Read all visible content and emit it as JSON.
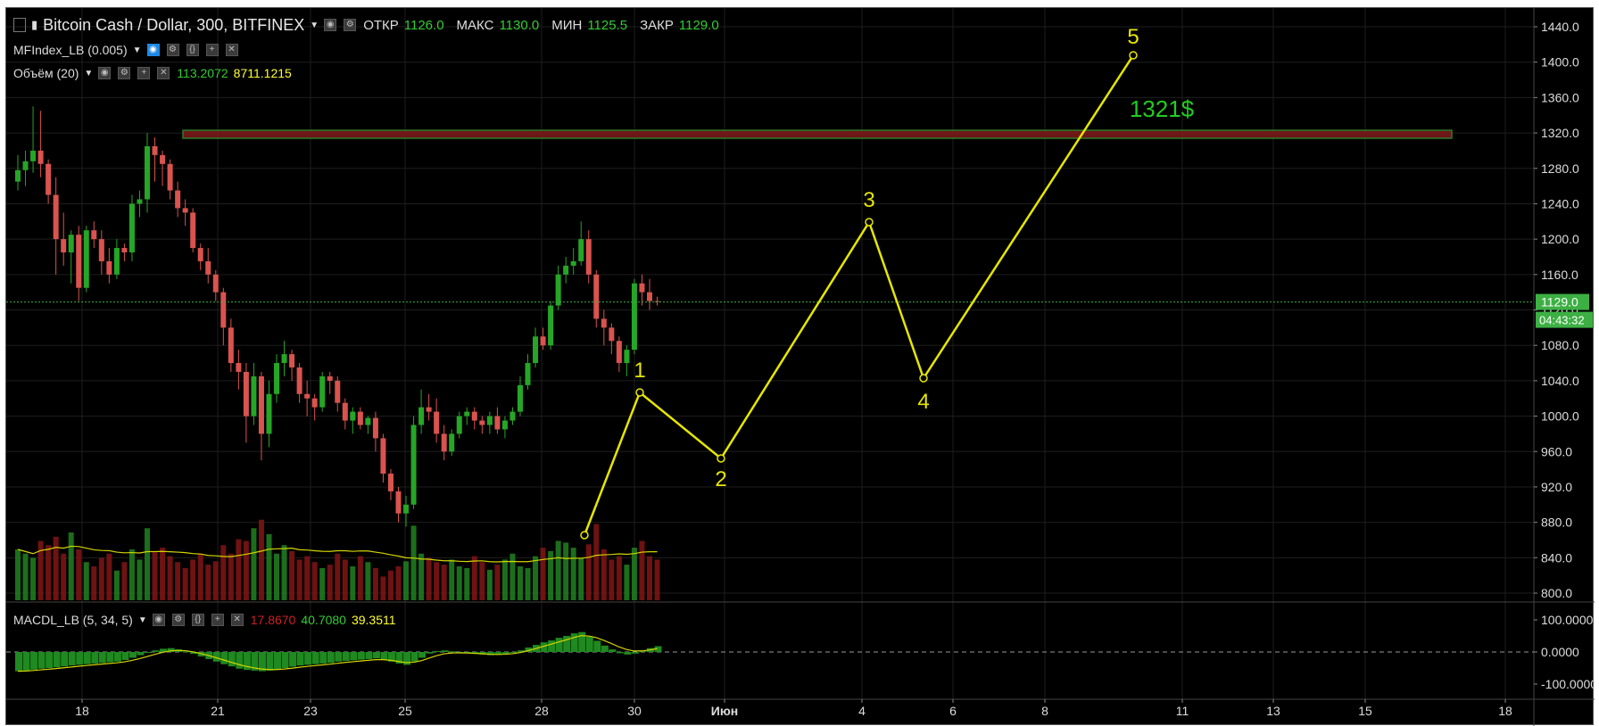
{
  "header": {
    "symbol_title": "Bitcoin Cash / Dollar, 300, BITFINEX",
    "ohlc": [
      {
        "key": "ОТКР",
        "value": "1126.0"
      },
      {
        "key": "МАКС",
        "value": "1130.0"
      },
      {
        "key": "МИН",
        "value": "1125.5"
      },
      {
        "key": "ЗАКР",
        "value": "1129.0"
      }
    ]
  },
  "indicators": {
    "mfi_label": "MFIndex_LB (0.005)",
    "volume_label": "Объём (20)",
    "volume_values": [
      "113.2072",
      "8711.1215"
    ],
    "macd_label": "MACDL_LB (5, 34, 5)",
    "macd_values": [
      "17.8670",
      "40.7080",
      "39.3511"
    ]
  },
  "price_axis": {
    "ticks": [
      "1440.0",
      "1400.0",
      "1360.0",
      "1320.0",
      "1280.0",
      "1240.0",
      "1200.0",
      "1160.0",
      "1120.0",
      "1080.0",
      "1040.0",
      "1000.0",
      "960.0",
      "920.0",
      "880.0",
      "840.0",
      "800.0"
    ],
    "last_price": "1129.0",
    "countdown": "04:43:32"
  },
  "macd_axis": {
    "ticks": [
      "100.0000",
      "0.0000",
      "-100.0000"
    ]
  },
  "time_axis": {
    "ticks": [
      "18",
      "21",
      "23",
      "25",
      "28",
      "30",
      "Июн",
      "4",
      "6",
      "8",
      "11",
      "13",
      "15",
      "18"
    ]
  },
  "annotations": {
    "target_label": "1321$",
    "wave_labels": [
      "1",
      "2",
      "3",
      "4",
      "5"
    ]
  },
  "colors": {
    "background": "#000000",
    "up": "#26a626",
    "down": "#d9534f",
    "wave": "#e6e600",
    "target_text": "#22cc22",
    "zone_fill": "#7a1a1a",
    "zone_border": "#2e8b2e",
    "last_price_tag": "#3cb043"
  },
  "chart_data": {
    "type": "candlestick",
    "title": "Bitcoin Cash / Dollar, 300, BITFINEX",
    "y_range": [
      790,
      1450
    ],
    "candles": [
      [
        1265,
        1295,
        1255,
        1278
      ],
      [
        1278,
        1300,
        1260,
        1288
      ],
      [
        1288,
        1350,
        1275,
        1300
      ],
      [
        1300,
        1345,
        1270,
        1285
      ],
      [
        1285,
        1290,
        1240,
        1250
      ],
      [
        1250,
        1270,
        1160,
        1200
      ],
      [
        1200,
        1230,
        1170,
        1185
      ],
      [
        1185,
        1210,
        1150,
        1205
      ],
      [
        1205,
        1215,
        1130,
        1145
      ],
      [
        1145,
        1215,
        1140,
        1210
      ],
      [
        1210,
        1220,
        1190,
        1200
      ],
      [
        1200,
        1210,
        1160,
        1175
      ],
      [
        1175,
        1190,
        1150,
        1160
      ],
      [
        1160,
        1200,
        1155,
        1190
      ],
      [
        1190,
        1195,
        1175,
        1185
      ],
      [
        1185,
        1250,
        1175,
        1240
      ],
      [
        1240,
        1255,
        1225,
        1245
      ],
      [
        1245,
        1320,
        1230,
        1305
      ],
      [
        1305,
        1315,
        1265,
        1295
      ],
      [
        1295,
        1300,
        1260,
        1285
      ],
      [
        1285,
        1290,
        1245,
        1255
      ],
      [
        1255,
        1265,
        1225,
        1235
      ],
      [
        1235,
        1245,
        1215,
        1230
      ],
      [
        1230,
        1235,
        1185,
        1190
      ],
      [
        1190,
        1195,
        1165,
        1175
      ],
      [
        1175,
        1190,
        1150,
        1160
      ],
      [
        1160,
        1165,
        1130,
        1140
      ],
      [
        1140,
        1145,
        1080,
        1100
      ],
      [
        1100,
        1110,
        1050,
        1060
      ],
      [
        1060,
        1075,
        1030,
        1050
      ],
      [
        1050,
        1060,
        970,
        1000
      ],
      [
        1000,
        1060,
        990,
        1045
      ],
      [
        1045,
        1050,
        950,
        980
      ],
      [
        980,
        1040,
        965,
        1025
      ],
      [
        1025,
        1070,
        1015,
        1060
      ],
      [
        1060,
        1085,
        1045,
        1070
      ],
      [
        1070,
        1075,
        1040,
        1055
      ],
      [
        1055,
        1060,
        1015,
        1025
      ],
      [
        1025,
        1040,
        1000,
        1020
      ],
      [
        1020,
        1025,
        995,
        1010
      ],
      [
        1010,
        1050,
        1005,
        1045
      ],
      [
        1045,
        1050,
        1025,
        1040
      ],
      [
        1040,
        1045,
        1005,
        1015
      ],
      [
        1015,
        1020,
        985,
        995
      ],
      [
        995,
        1010,
        980,
        1005
      ],
      [
        1005,
        1010,
        985,
        990
      ],
      [
        990,
        1000,
        980,
        998
      ],
      [
        998,
        1005,
        960,
        975
      ],
      [
        975,
        980,
        925,
        935
      ],
      [
        935,
        940,
        905,
        915
      ],
      [
        915,
        920,
        880,
        890
      ],
      [
        890,
        910,
        875,
        900
      ],
      [
        900,
        1000,
        895,
        990
      ],
      [
        990,
        1030,
        980,
        1010
      ],
      [
        1010,
        1025,
        995,
        1005
      ],
      [
        1005,
        1020,
        970,
        980
      ],
      [
        980,
        990,
        950,
        960
      ],
      [
        960,
        985,
        955,
        980
      ],
      [
        980,
        1005,
        975,
        1000
      ],
      [
        1000,
        1010,
        990,
        1005
      ],
      [
        1005,
        1010,
        985,
        995
      ],
      [
        995,
        1000,
        980,
        990
      ],
      [
        990,
        1005,
        980,
        1000
      ],
      [
        1000,
        1010,
        980,
        985
      ],
      [
        985,
        1000,
        975,
        995
      ],
      [
        995,
        1010,
        990,
        1005
      ],
      [
        1005,
        1045,
        1000,
        1035
      ],
      [
        1035,
        1070,
        1030,
        1060
      ],
      [
        1060,
        1100,
        1055,
        1090
      ],
      [
        1090,
        1100,
        1075,
        1080
      ],
      [
        1080,
        1130,
        1075,
        1125
      ],
      [
        1125,
        1170,
        1120,
        1160
      ],
      [
        1160,
        1180,
        1150,
        1170
      ],
      [
        1170,
        1190,
        1160,
        1175
      ],
      [
        1175,
        1220,
        1170,
        1200
      ],
      [
        1200,
        1210,
        1150,
        1160
      ],
      [
        1160,
        1165,
        1100,
        1110
      ],
      [
        1110,
        1120,
        1080,
        1100
      ],
      [
        1100,
        1105,
        1070,
        1085
      ],
      [
        1085,
        1090,
        1050,
        1060
      ],
      [
        1060,
        1080,
        1045,
        1075
      ],
      [
        1075,
        1155,
        1070,
        1150
      ],
      [
        1150,
        1160,
        1125,
        1140
      ],
      [
        1140,
        1155,
        1120,
        1130
      ],
      [
        1130,
        1135,
        1125,
        1129
      ]
    ],
    "volume": [
      60,
      55,
      50,
      70,
      65,
      75,
      55,
      80,
      60,
      45,
      40,
      50,
      55,
      35,
      45,
      60,
      48,
      85,
      58,
      62,
      52,
      45,
      38,
      48,
      55,
      42,
      46,
      65,
      55,
      72,
      70,
      85,
      95,
      78,
      55,
      65,
      58,
      48,
      52,
      45,
      38,
      42,
      55,
      48,
      40,
      52,
      45,
      38,
      28,
      35,
      40,
      46,
      88,
      55,
      50,
      45,
      42,
      48,
      40,
      38,
      52,
      45,
      36,
      42,
      48,
      55,
      40,
      38,
      52,
      62,
      58,
      70,
      68,
      62,
      50,
      66,
      90,
      60,
      48,
      52,
      42,
      62,
      70,
      52,
      48
    ],
    "macd_histogram": [
      -60,
      -58,
      -55,
      -52,
      -50,
      -48,
      -45,
      -42,
      -40,
      -38,
      -36,
      -34,
      -32,
      -30,
      -25,
      -18,
      -10,
      -2,
      5,
      10,
      12,
      8,
      2,
      -6,
      -14,
      -22,
      -30,
      -38,
      -45,
      -52,
      -56,
      -58,
      -60,
      -58,
      -55,
      -50,
      -46,
      -42,
      -40,
      -38,
      -36,
      -34,
      -30,
      -28,
      -26,
      -24,
      -22,
      -20,
      -24,
      -30,
      -36,
      -40,
      -30,
      -18,
      -5,
      3,
      5,
      2,
      -2,
      -4,
      -6,
      -8,
      -10,
      -9,
      -6,
      -2,
      5,
      14,
      22,
      30,
      36,
      44,
      50,
      58,
      62,
      48,
      35,
      20,
      8,
      -4,
      -8,
      -5,
      4,
      12,
      18
    ]
  }
}
